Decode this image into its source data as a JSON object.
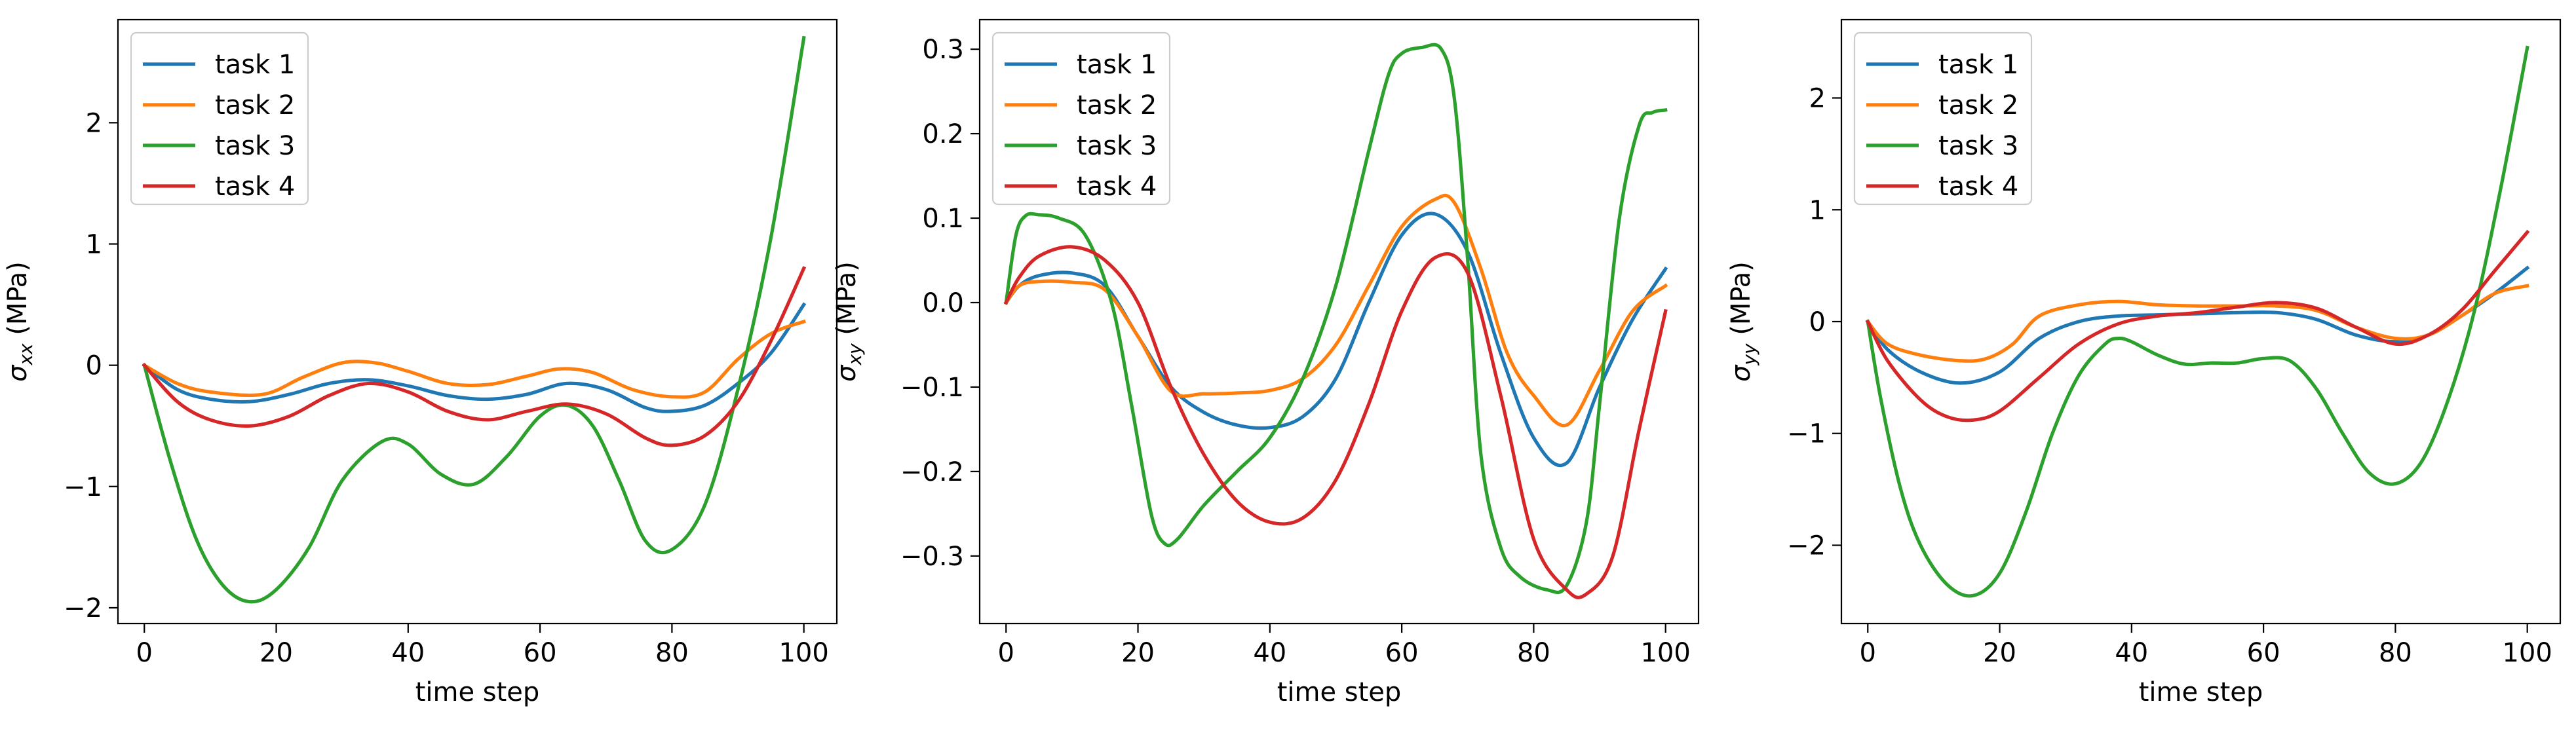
{
  "colors": {
    "task1": "#1f77b4",
    "task2": "#ff7f0e",
    "task3": "#2ca02c",
    "task4": "#d62728"
  },
  "chart_data": [
    {
      "type": "line",
      "xlabel": "time step",
      "ylabel_main": "σ",
      "ylabel_sub": "xx",
      "ylabel_unit": " (MPa)",
      "xlim": [
        -4,
        105
      ],
      "ylim": [
        -2.13,
        2.85
      ],
      "xticks": [
        0,
        20,
        40,
        60,
        80,
        100
      ],
      "yticks": [
        -2,
        -1,
        0,
        1,
        2
      ],
      "legend_position": "top-left",
      "grid": false,
      "series": [
        {
          "name": "task 1",
          "color": "#1f77b4",
          "x": [
            0,
            5,
            10,
            16,
            22,
            28,
            34,
            40,
            46,
            52,
            58,
            64,
            70,
            76,
            80,
            85,
            90,
            95,
            100
          ],
          "y": [
            0,
            -0.2,
            -0.28,
            -0.3,
            -0.24,
            -0.15,
            -0.12,
            -0.17,
            -0.25,
            -0.28,
            -0.24,
            -0.15,
            -0.2,
            -0.35,
            -0.38,
            -0.33,
            -0.15,
            0.1,
            0.5
          ]
        },
        {
          "name": "task 2",
          "color": "#ff7f0e",
          "x": [
            0,
            5,
            10,
            18,
            24,
            30,
            35,
            40,
            46,
            52,
            58,
            63,
            68,
            74,
            80,
            85,
            90,
            95,
            100
          ],
          "y": [
            0,
            -0.15,
            -0.22,
            -0.24,
            -0.1,
            0.02,
            0.02,
            -0.05,
            -0.15,
            -0.16,
            -0.09,
            -0.03,
            -0.06,
            -0.2,
            -0.26,
            -0.22,
            0.05,
            0.26,
            0.36
          ]
        },
        {
          "name": "task 3",
          "color": "#2ca02c",
          "x": [
            0,
            4,
            8,
            12,
            16,
            20,
            25,
            30,
            36,
            40,
            45,
            50,
            55,
            60,
            64,
            68,
            72,
            76,
            80,
            85,
            90,
            95,
            100
          ],
          "y": [
            0,
            -0.8,
            -1.45,
            -1.82,
            -1.95,
            -1.85,
            -1.5,
            -0.95,
            -0.63,
            -0.65,
            -0.9,
            -0.98,
            -0.75,
            -0.42,
            -0.33,
            -0.5,
            -0.95,
            -1.45,
            -1.52,
            -1.15,
            -0.2,
            1.05,
            2.7
          ]
        },
        {
          "name": "task 4",
          "color": "#d62728",
          "x": [
            0,
            5,
            10,
            16,
            22,
            28,
            34,
            40,
            46,
            52,
            58,
            64,
            70,
            76,
            80,
            85,
            90,
            95,
            100
          ],
          "y": [
            0,
            -0.3,
            -0.45,
            -0.5,
            -0.42,
            -0.25,
            -0.15,
            -0.22,
            -0.38,
            -0.45,
            -0.38,
            -0.32,
            -0.4,
            -0.6,
            -0.66,
            -0.58,
            -0.3,
            0.2,
            0.8
          ]
        }
      ]
    },
    {
      "type": "line",
      "xlabel": "time step",
      "ylabel_main": "σ",
      "ylabel_sub": "xy",
      "ylabel_unit": " (MPa)",
      "xlim": [
        -4,
        105
      ],
      "ylim": [
        -0.38,
        0.335
      ],
      "xticks": [
        0,
        20,
        40,
        60,
        80,
        100
      ],
      "yticks": [
        -0.3,
        -0.2,
        -0.1,
        0.0,
        0.1,
        0.2,
        0.3
      ],
      "ytick_labels": [
        "−0.3",
        "−0.2",
        "−0.1",
        "0.0",
        "0.1",
        "0.2",
        "0.3"
      ],
      "legend_position": "top-left",
      "grid": false,
      "series": [
        {
          "name": "task 1",
          "color": "#1f77b4",
          "x": [
            0,
            2,
            5,
            10,
            15,
            20,
            25,
            30,
            35,
            40,
            45,
            50,
            55,
            60,
            65,
            70,
            75,
            80,
            85,
            90,
            95,
            100
          ],
          "y": [
            0,
            0.02,
            0.032,
            0.035,
            0.02,
            -0.04,
            -0.1,
            -0.13,
            -0.145,
            -0.148,
            -0.135,
            -0.09,
            0.0,
            0.08,
            0.105,
            0.06,
            -0.06,
            -0.16,
            -0.19,
            -0.1,
            -0.02,
            0.04
          ]
        },
        {
          "name": "task 2",
          "color": "#ff7f0e",
          "x": [
            0,
            2,
            5,
            10,
            15,
            20,
            25,
            30,
            35,
            40,
            45,
            50,
            55,
            60,
            65,
            68,
            72,
            76,
            80,
            85,
            90,
            95,
            100
          ],
          "y": [
            0,
            0.02,
            0.025,
            0.024,
            0.015,
            -0.04,
            -0.105,
            -0.108,
            -0.107,
            -0.104,
            -0.09,
            -0.05,
            0.02,
            0.09,
            0.122,
            0.118,
            0.04,
            -0.06,
            -0.11,
            -0.145,
            -0.08,
            -0.01,
            0.02
          ]
        },
        {
          "name": "task 3",
          "color": "#2ca02c",
          "x": [
            0,
            1.5,
            3,
            5,
            8,
            12,
            16,
            19,
            22,
            24,
            26,
            30,
            35,
            40,
            45,
            50,
            55,
            58,
            60,
            63,
            66,
            68,
            70,
            72,
            75,
            78,
            82,
            85,
            88,
            90,
            93,
            96,
            98,
            100
          ],
          "y": [
            0,
            0.08,
            0.103,
            0.104,
            0.1,
            0.08,
            0.0,
            -0.12,
            -0.25,
            -0.285,
            -0.28,
            -0.24,
            -0.2,
            -0.16,
            -0.09,
            0.02,
            0.18,
            0.27,
            0.295,
            0.302,
            0.3,
            0.24,
            0.05,
            -0.18,
            -0.29,
            -0.325,
            -0.34,
            -0.335,
            -0.26,
            -0.12,
            0.1,
            0.21,
            0.225,
            0.228
          ]
        },
        {
          "name": "task 4",
          "color": "#d62728",
          "x": [
            0,
            2,
            5,
            10,
            15,
            20,
            25,
            30,
            35,
            40,
            45,
            50,
            55,
            60,
            65,
            70,
            75,
            80,
            85,
            88,
            92,
            96,
            100
          ],
          "y": [
            0,
            0.03,
            0.055,
            0.066,
            0.05,
            0.0,
            -0.1,
            -0.18,
            -0.235,
            -0.26,
            -0.255,
            -0.21,
            -0.12,
            -0.01,
            0.053,
            0.035,
            -0.11,
            -0.28,
            -0.34,
            -0.345,
            -0.3,
            -0.15,
            -0.01
          ]
        }
      ]
    },
    {
      "type": "line",
      "xlabel": "time step",
      "ylabel_main": "σ",
      "ylabel_sub": "yy",
      "ylabel_unit": " (MPa)",
      "xlim": [
        -4,
        105
      ],
      "ylim": [
        -2.7,
        2.7
      ],
      "xticks": [
        0,
        20,
        40,
        60,
        80,
        100
      ],
      "yticks": [
        -2,
        -1,
        0,
        1,
        2
      ],
      "legend_position": "top-left",
      "grid": false,
      "series": [
        {
          "name": "task 1",
          "color": "#1f77b4",
          "x": [
            0,
            3,
            8,
            14,
            20,
            26,
            32,
            38,
            44,
            50,
            56,
            62,
            68,
            74,
            80,
            85,
            90,
            95,
            100
          ],
          "y": [
            0,
            -0.25,
            -0.45,
            -0.55,
            -0.45,
            -0.15,
            0.0,
            0.05,
            0.06,
            0.07,
            0.08,
            0.08,
            0.02,
            -0.12,
            -0.18,
            -0.12,
            0.05,
            0.25,
            0.48
          ]
        },
        {
          "name": "task 2",
          "color": "#ff7f0e",
          "x": [
            0,
            3,
            8,
            14,
            18,
            22,
            26,
            32,
            38,
            44,
            50,
            56,
            62,
            68,
            74,
            80,
            85,
            90,
            95,
            100
          ],
          "y": [
            0,
            -0.2,
            -0.3,
            -0.35,
            -0.33,
            -0.2,
            0.05,
            0.15,
            0.18,
            0.15,
            0.14,
            0.14,
            0.14,
            0.1,
            -0.05,
            -0.15,
            -0.12,
            0.05,
            0.25,
            0.32
          ]
        },
        {
          "name": "task 3",
          "color": "#2ca02c",
          "x": [
            0,
            2,
            5,
            8,
            12,
            16,
            20,
            24,
            28,
            32,
            36,
            38,
            40,
            44,
            48,
            52,
            56,
            60,
            64,
            68,
            72,
            76,
            80,
            84,
            88,
            92,
            96,
            100
          ],
          "y": [
            0,
            -0.7,
            -1.5,
            -2.0,
            -2.35,
            -2.45,
            -2.25,
            -1.7,
            -1.0,
            -0.48,
            -0.2,
            -0.15,
            -0.18,
            -0.3,
            -0.38,
            -0.37,
            -0.37,
            -0.33,
            -0.35,
            -0.6,
            -1.0,
            -1.35,
            -1.45,
            -1.25,
            -0.7,
            0.1,
            1.2,
            2.45
          ]
        },
        {
          "name": "task 4",
          "color": "#d62728",
          "x": [
            0,
            3,
            8,
            12,
            16,
            20,
            26,
            32,
            38,
            44,
            50,
            56,
            62,
            68,
            74,
            80,
            85,
            90,
            95,
            100
          ],
          "y": [
            0,
            -0.35,
            -0.7,
            -0.85,
            -0.88,
            -0.8,
            -0.5,
            -0.2,
            -0.02,
            0.05,
            0.08,
            0.13,
            0.17,
            0.12,
            -0.05,
            -0.2,
            -0.12,
            0.1,
            0.45,
            0.8
          ]
        }
      ]
    }
  ]
}
